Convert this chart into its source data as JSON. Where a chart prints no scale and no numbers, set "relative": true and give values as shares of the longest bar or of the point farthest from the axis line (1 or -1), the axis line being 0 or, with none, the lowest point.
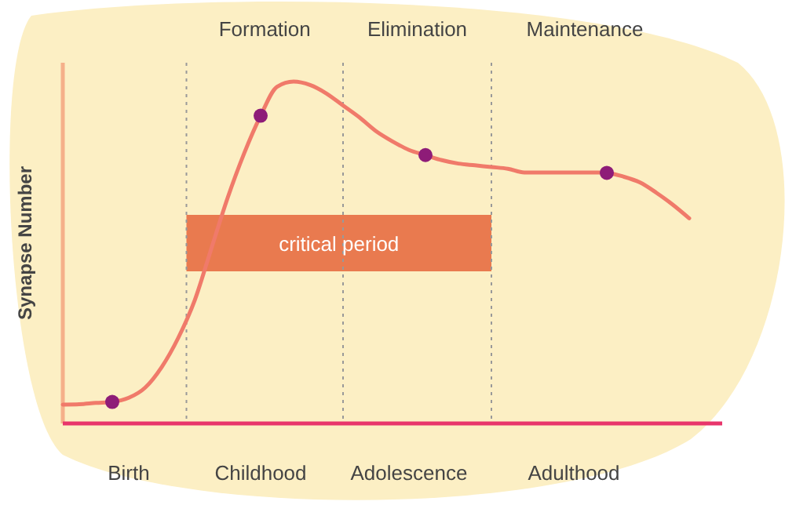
{
  "chart_data": {
    "type": "line",
    "relative": true,
    "ylabel": "Synapse Number",
    "categories": [
      null,
      null,
      null,
      null,
      "Birth",
      null,
      null,
      null,
      null,
      null,
      null,
      null,
      "Childhood",
      null,
      null,
      null,
      null,
      null,
      null,
      null,
      null,
      "Adolescence",
      null,
      null,
      null,
      null,
      null,
      null,
      null,
      null,
      null,
      "Adulthood",
      null,
      null,
      null,
      null,
      null,
      null,
      null,
      null,
      null
    ],
    "series": [
      {
        "color": "#f07a6a",
        "marker": "none",
        "line_style": "solid",
        "values": [
          0.055,
          0.056,
          0.06,
          0.063,
          0.075,
          0.105,
          0.165,
          0.25,
          0.36,
          0.51,
          0.66,
          0.79,
          0.9,
          0.985,
          1,
          0.99,
          0.965,
          0.93,
          0.895,
          0.855,
          0.825,
          0.8,
          0.785,
          0.77,
          0.76,
          0.755,
          0.75,
          0.745,
          0.734,
          0.734,
          0.734,
          0.734,
          0.734,
          0.733,
          0.722,
          0.705,
          0.675,
          0.64,
          0.6,
          null,
          null
        ]
      },
      {
        "type": "scatter",
        "color": "#8e1c78",
        "marker": "circle",
        "values": [
          null,
          null,
          null,
          0.063,
          null,
          null,
          null,
          null,
          null,
          null,
          null,
          null,
          0.9,
          null,
          null,
          null,
          null,
          null,
          null,
          null,
          null,
          null,
          0.785,
          null,
          null,
          null,
          null,
          null,
          null,
          null,
          null,
          null,
          null,
          0.733,
          null,
          null,
          null,
          null,
          null,
          null,
          null
        ]
      }
    ],
    "annotations": [
      "Formation",
      "Elimination",
      "Maintenance",
      "critical period"
    ]
  }
}
